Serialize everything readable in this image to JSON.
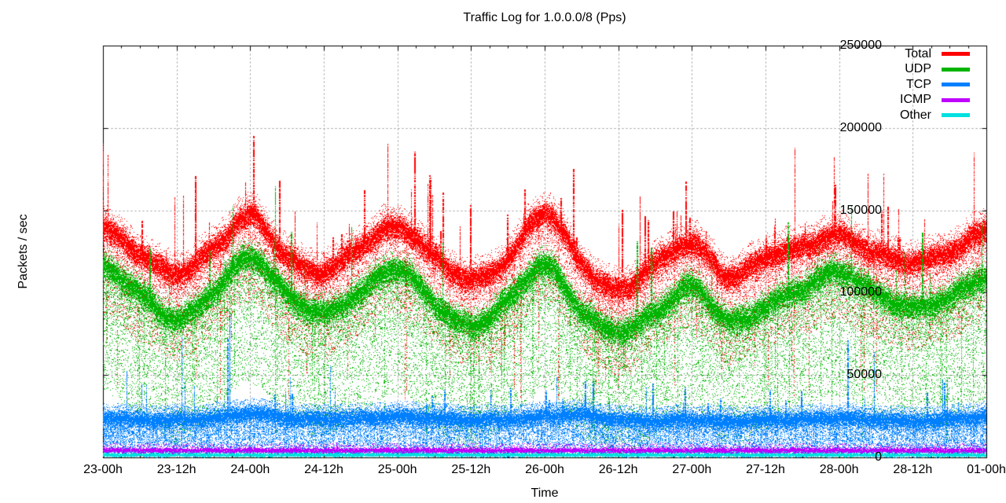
{
  "chart_data": {
    "type": "scatter",
    "title": "Traffic Log for 1.0.0.0/8 (Pps)",
    "xlabel": "Time",
    "ylabel": "Packets / sec",
    "background": "#ffffff",
    "axis_color": "#000000",
    "text_color": "#000000",
    "grid": true,
    "grid_color": "#9a9a9a",
    "legend_position": "top-right-inside",
    "ylim": [
      0,
      250000
    ],
    "xlim_hours": [
      0,
      144
    ],
    "y_tick_labels": [
      "0",
      "50000",
      "100000",
      "150000",
      "200000",
      "250000"
    ],
    "x_tick_labels": [
      "23-00h",
      "23-12h",
      "24-00h",
      "24-12h",
      "25-00h",
      "25-12h",
      "26-00h",
      "26-12h",
      "27-00h",
      "27-12h",
      "28-00h",
      "28-12h",
      "01-00h"
    ],
    "x_minor_ticks_per_major": 4,
    "keypoint_interval_hours": 6,
    "series": [
      {
        "name": "Total",
        "color": "#ff0000",
        "center_pps": [
          139000,
          124000,
          112000,
          127000,
          147000,
          122000,
          113000,
          129000,
          140000,
          122000,
          108000,
          121000,
          149000,
          118000,
          102000,
          118000,
          130000,
          110000,
          122000,
          128000,
          135000,
          124000,
          119000,
          125000,
          138000
        ],
        "render": {
          "sigma": 3000,
          "core_dots": 46,
          "tail_below": {
            "dots": 18,
            "depth": 48000,
            "power": 2.2
          },
          "tail_above": {
            "dots": 3,
            "depth": 9000
          },
          "spike_up": {
            "prob": 0.05,
            "min": 12000,
            "max": 55000,
            "rare_prob": 0.004,
            "rare_min": 50000,
            "rare_max": 72000
          },
          "streak_down": {
            "prob": 0.04,
            "floor": 35000
          },
          "wiggle": 1700
        }
      },
      {
        "name": "UDP",
        "color": "#00b400",
        "center_pps": [
          116000,
          100000,
          84000,
          101000,
          122000,
          99000,
          88000,
          101000,
          115000,
          94000,
          80000,
          96000,
          117000,
          89000,
          77000,
          88000,
          104000,
          83000,
          92000,
          103000,
          113000,
          100000,
          91000,
          98000,
          110000
        ],
        "render": {
          "sigma": 3200,
          "core_dots": 46,
          "tail_below": {
            "dots": 24,
            "depth": 70000,
            "power": 1.8
          },
          "tail_above": {
            "dots": 2,
            "depth": 7000
          },
          "spike_up": {
            "prob": 0.014,
            "min": 15000,
            "max": 45000,
            "rare_prob": 0.002,
            "rare_min": 40000,
            "rare_max": 60000
          },
          "streak_down": {
            "prob": 0.06,
            "floor": 9000
          },
          "wiggle": 1700
        }
      },
      {
        "name": "TCP",
        "color": "#0080ff",
        "center_pps": [
          24000,
          23000,
          23000,
          24000,
          27000,
          24000,
          23500,
          24000,
          25000,
          24000,
          23000,
          23000,
          25000,
          26000,
          23000,
          22000,
          23000,
          22000,
          23000,
          23000,
          24000,
          23000,
          22000,
          23000,
          25000
        ],
        "render": {
          "sigma": 1900,
          "core_dots": 36,
          "tail_below": {
            "dots": 15,
            "depth": 20000,
            "power": 1.4
          },
          "tail_above": {
            "dots": 5,
            "depth": 6000
          },
          "spike_up": {
            "prob": 0.04,
            "min": 8000,
            "max": 25000,
            "rare_prob": 0.005,
            "rare_min": 26000,
            "rare_max": 70000
          },
          "streak_down": {
            "prob": 0.45,
            "floor": 1500
          },
          "wiggle": 750
        }
      },
      {
        "name": "ICMP",
        "color": "#c000ff",
        "center_pps": [
          4200,
          4200,
          4200,
          4200,
          4200,
          4200,
          4200,
          4200,
          4200,
          4200,
          4200,
          4200,
          4200,
          4200,
          4200,
          4200,
          4200,
          4200,
          4200,
          4200,
          4200,
          4200,
          4200,
          4200,
          4200
        ],
        "render": {
          "sigma": 650,
          "core_dots": 16,
          "tail_below": {
            "dots": 0,
            "depth": 0,
            "power": 1
          },
          "tail_above": {
            "dots": 2,
            "depth": 3500
          },
          "spike_up": {
            "prob": 0.008,
            "min": 2000,
            "max": 6000,
            "rare_prob": 0,
            "rare_min": 0,
            "rare_max": 0
          },
          "streak_down": {
            "prob": 0,
            "floor": 0
          },
          "wiggle": 250
        }
      },
      {
        "name": "Other",
        "color": "#00e0e0",
        "center_pps": [
          1600,
          1600,
          1600,
          1600,
          1600,
          1600,
          1600,
          1600,
          1600,
          1600,
          1600,
          1600,
          1600,
          1600,
          1600,
          1600,
          1600,
          1600,
          1600,
          1600,
          1600,
          1600,
          1600,
          1600,
          1600
        ],
        "render": {
          "sigma": 430,
          "core_dots": 14,
          "tail_below": {
            "dots": 0,
            "depth": 0,
            "power": 1
          },
          "tail_above": {
            "dots": 1,
            "depth": 1600
          },
          "spike_up": {
            "prob": 0.004,
            "min": 800,
            "max": 2500,
            "rare_prob": 0,
            "rare_min": 0,
            "rare_max": 0
          },
          "streak_down": {
            "prob": 0,
            "floor": 0
          },
          "wiggle": 160
        }
      }
    ]
  }
}
